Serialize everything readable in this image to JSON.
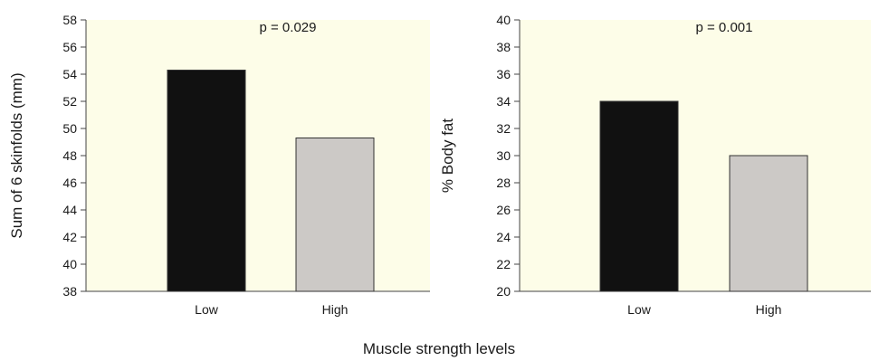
{
  "xlabel_shared": "Muscle strength levels",
  "chart_data": [
    {
      "type": "bar",
      "categories": [
        "Low",
        "High"
      ],
      "values": [
        54.3,
        49.3
      ],
      "colors": [
        "#111111",
        "#ccc9c6"
      ],
      "ylabel": "Sum of 6 skinfolds (mm)",
      "ylim": [
        38,
        58
      ],
      "yticks": [
        38,
        40,
        42,
        44,
        46,
        48,
        50,
        52,
        54,
        56,
        58
      ],
      "annotation": "p = 0.029",
      "background": "#fdfde8",
      "grid": false
    },
    {
      "type": "bar",
      "categories": [
        "Low",
        "High"
      ],
      "values": [
        34,
        30
      ],
      "colors": [
        "#111111",
        "#ccc9c6"
      ],
      "ylabel": "% Body fat",
      "ylim": [
        20,
        40
      ],
      "yticks": [
        20,
        22,
        24,
        26,
        28,
        30,
        32,
        34,
        36,
        38,
        40
      ],
      "annotation": "p = 0.001",
      "background": "#fdfde8",
      "grid": false
    }
  ]
}
